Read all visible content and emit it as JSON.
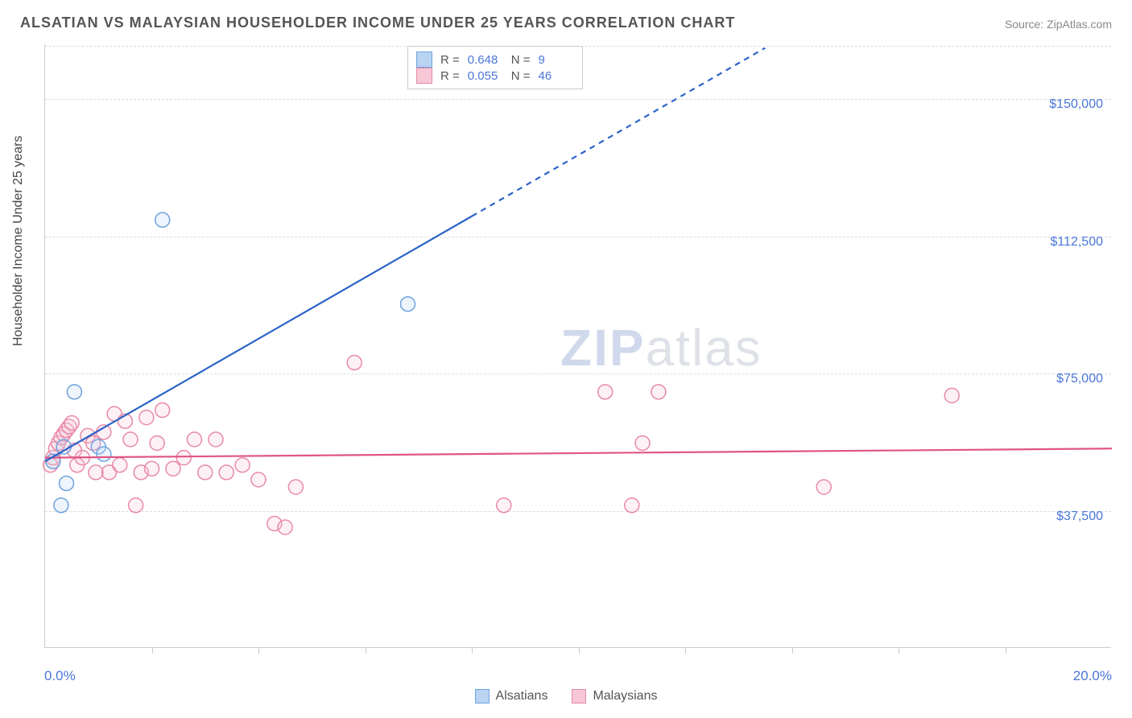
{
  "title": "ALSATIAN VS MALAYSIAN HOUSEHOLDER INCOME UNDER 25 YEARS CORRELATION CHART",
  "source_label": "Source: ZipAtlas.com",
  "y_axis_label": "Householder Income Under 25 years",
  "chart": {
    "type": "scatter",
    "xlim": [
      0,
      20
    ],
    "ylim": [
      0,
      165000
    ],
    "x_min_label": "0.0%",
    "x_max_label": "20.0%",
    "y_ticks": [
      37500,
      75000,
      112500,
      150000
    ],
    "y_tick_labels": [
      "$37,500",
      "$75,000",
      "$112,500",
      "$150,000"
    ],
    "x_tick_positions": [
      2,
      4,
      6,
      8,
      10,
      12,
      14,
      16,
      18
    ],
    "grid_color": "#dddddd",
    "axis_color": "#cccccc",
    "background_color": "#ffffff",
    "y_label_color": "#4a76d8",
    "tick_fontsize": 16,
    "title_fontsize": 18,
    "marker_radius": 9,
    "marker_stroke_width": 1.5,
    "marker_fill_opacity": 0.25,
    "trendline_width": 2.2
  },
  "series": {
    "alsatians": {
      "label": "Alsatians",
      "R": "0.648",
      "N": "9",
      "color_stroke": "#6fa3e0",
      "color_fill": "#b9d3f0",
      "line_color": "#2b63c9",
      "points": [
        [
          0.15,
          51000
        ],
        [
          0.35,
          55000
        ],
        [
          0.4,
          45000
        ],
        [
          0.55,
          70000
        ],
        [
          0.3,
          39000
        ],
        [
          1.0,
          55000
        ],
        [
          1.1,
          53000
        ],
        [
          2.2,
          117000
        ],
        [
          6.8,
          94000
        ]
      ],
      "trendline": {
        "x1": 0,
        "y1": 51000,
        "x2": 8.0,
        "y2": 118000
      },
      "trendline_dashed": {
        "x1": 8.0,
        "y1": 118000,
        "x2": 13.5,
        "y2": 164000
      }
    },
    "malaysians": {
      "label": "Malaysians",
      "R": "0.055",
      "N": "46",
      "color_stroke": "#e98aa8",
      "color_fill": "#f7c7d6",
      "line_color": "#e05586",
      "points": [
        [
          0.1,
          50000
        ],
        [
          0.15,
          52000
        ],
        [
          0.2,
          54500
        ],
        [
          0.25,
          56000
        ],
        [
          0.3,
          57500
        ],
        [
          0.35,
          58500
        ],
        [
          0.4,
          59500
        ],
        [
          0.45,
          60500
        ],
        [
          0.5,
          61500
        ],
        [
          0.55,
          54000
        ],
        [
          0.6,
          50000
        ],
        [
          0.7,
          52000
        ],
        [
          0.8,
          58000
        ],
        [
          0.9,
          56000
        ],
        [
          0.95,
          48000
        ],
        [
          1.1,
          59000
        ],
        [
          1.2,
          48000
        ],
        [
          1.3,
          64000
        ],
        [
          1.4,
          50000
        ],
        [
          1.5,
          62000
        ],
        [
          1.6,
          57000
        ],
        [
          1.7,
          39000
        ],
        [
          1.8,
          48000
        ],
        [
          1.9,
          63000
        ],
        [
          2.0,
          49000
        ],
        [
          2.1,
          56000
        ],
        [
          2.2,
          65000
        ],
        [
          2.4,
          49000
        ],
        [
          2.6,
          52000
        ],
        [
          2.8,
          57000
        ],
        [
          3.0,
          48000
        ],
        [
          3.2,
          57000
        ],
        [
          3.4,
          48000
        ],
        [
          3.7,
          50000
        ],
        [
          4.0,
          46000
        ],
        [
          4.3,
          34000
        ],
        [
          4.5,
          33000
        ],
        [
          4.7,
          44000
        ],
        [
          5.8,
          78000
        ],
        [
          8.6,
          39000
        ],
        [
          10.5,
          70000
        ],
        [
          11.0,
          39000
        ],
        [
          11.2,
          56000
        ],
        [
          11.5,
          70000
        ],
        [
          14.6,
          44000
        ],
        [
          17.0,
          69000
        ]
      ],
      "trendline": {
        "x1": 0,
        "y1": 52000,
        "x2": 20,
        "y2": 54500
      }
    }
  },
  "legend_top": {
    "r_label": "R =",
    "n_label": "N ="
  },
  "watermark": {
    "zip": "ZIP",
    "atlas": "atlas"
  }
}
